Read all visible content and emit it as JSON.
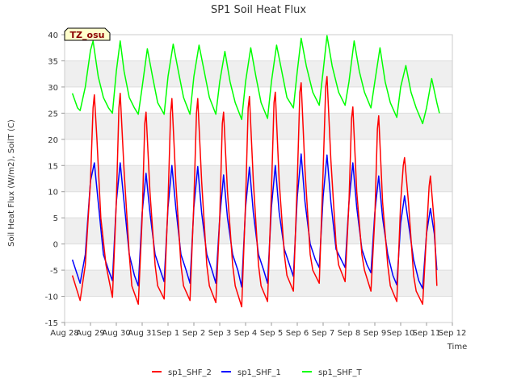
{
  "chart_data": {
    "type": "line",
    "title": "SP1 Soil Heat Flux",
    "xlabel": "Time",
    "ylabel": "Soil Heat Flux (W/m2), SoilT (C)",
    "badge": "TZ_osu",
    "x_ticks": [
      "Aug 28",
      "Aug 29",
      "Aug 30",
      "Aug 31",
      "Sep 1",
      "Sep 2",
      "Sep 3",
      "Sep 4",
      "Sep 5",
      "Sep 6",
      "Sep 7",
      "Sep 8",
      "Sep 9",
      "Sep 10",
      "Sep 11",
      "Sep 12"
    ],
    "xlim_days": [
      0,
      15
    ],
    "ylim": [
      -15,
      40
    ],
    "y_ticks": [
      -15,
      -10,
      -5,
      0,
      5,
      10,
      15,
      20,
      25,
      30,
      35,
      40
    ],
    "grid": "horizontal bands",
    "legend_position": "bottom",
    "series": [
      {
        "name": "sp1_SHF_2",
        "color": "#ff0000",
        "points": [
          [
            0.3,
            -6
          ],
          [
            0.6,
            -10.8
          ],
          [
            0.8,
            -4
          ],
          [
            1.0,
            12
          ],
          [
            1.1,
            26
          ],
          [
            1.15,
            28.5
          ],
          [
            1.25,
            20
          ],
          [
            1.4,
            5
          ],
          [
            1.6,
            -4
          ],
          [
            1.85,
            -10.2
          ],
          [
            2.0,
            8
          ],
          [
            2.1,
            26
          ],
          [
            2.15,
            28.8
          ],
          [
            2.3,
            14
          ],
          [
            2.5,
            -2
          ],
          [
            2.6,
            -8
          ],
          [
            2.85,
            -11.5
          ],
          [
            3.0,
            5
          ],
          [
            3.1,
            23
          ],
          [
            3.15,
            25.2
          ],
          [
            3.3,
            10
          ],
          [
            3.5,
            -4
          ],
          [
            3.6,
            -8
          ],
          [
            3.85,
            -10.5
          ],
          [
            4.0,
            8
          ],
          [
            4.1,
            25
          ],
          [
            4.15,
            27.8
          ],
          [
            4.3,
            12
          ],
          [
            4.5,
            -4
          ],
          [
            4.6,
            -8
          ],
          [
            4.85,
            -10.8
          ],
          [
            5.0,
            8
          ],
          [
            5.1,
            25
          ],
          [
            5.15,
            27.8
          ],
          [
            5.3,
            12
          ],
          [
            5.5,
            -4
          ],
          [
            5.6,
            -8
          ],
          [
            5.85,
            -11.2
          ],
          [
            6.0,
            5
          ],
          [
            6.1,
            23
          ],
          [
            6.15,
            25.2
          ],
          [
            6.3,
            10
          ],
          [
            6.5,
            -4
          ],
          [
            6.6,
            -8
          ],
          [
            6.85,
            -12
          ],
          [
            7.0,
            8
          ],
          [
            7.1,
            26
          ],
          [
            7.15,
            28.2
          ],
          [
            7.3,
            12
          ],
          [
            7.5,
            -4
          ],
          [
            7.6,
            -8
          ],
          [
            7.85,
            -11
          ],
          [
            8.0,
            10
          ],
          [
            8.1,
            27
          ],
          [
            8.15,
            29
          ],
          [
            8.3,
            12
          ],
          [
            8.5,
            -2
          ],
          [
            8.6,
            -6
          ],
          [
            8.85,
            -9
          ],
          [
            9.0,
            12
          ],
          [
            9.1,
            29
          ],
          [
            9.15,
            30.8
          ],
          [
            9.3,
            14
          ],
          [
            9.5,
            -2
          ],
          [
            9.6,
            -5
          ],
          [
            9.85,
            -7.5
          ],
          [
            10.0,
            14
          ],
          [
            10.1,
            30
          ],
          [
            10.15,
            32
          ],
          [
            10.3,
            16
          ],
          [
            10.5,
            0
          ],
          [
            10.6,
            -4
          ],
          [
            10.85,
            -7.2
          ],
          [
            11.0,
            8
          ],
          [
            11.1,
            24
          ],
          [
            11.15,
            26.2
          ],
          [
            11.3,
            10
          ],
          [
            11.5,
            -2
          ],
          [
            11.6,
            -5
          ],
          [
            11.85,
            -9
          ],
          [
            12.0,
            5
          ],
          [
            12.1,
            22
          ],
          [
            12.15,
            24.5
          ],
          [
            12.3,
            8
          ],
          [
            12.5,
            -4
          ],
          [
            12.6,
            -8
          ],
          [
            12.85,
            -11
          ],
          [
            13.0,
            8
          ],
          [
            13.1,
            15
          ],
          [
            13.15,
            16.5
          ],
          [
            13.3,
            8
          ],
          [
            13.5,
            -6
          ],
          [
            13.6,
            -9
          ],
          [
            13.85,
            -11.5
          ],
          [
            14.0,
            2
          ],
          [
            14.1,
            11
          ],
          [
            14.15,
            13
          ],
          [
            14.3,
            4
          ],
          [
            14.4,
            -8
          ]
        ]
      },
      {
        "name": "sp1_SHF_1",
        "color": "#0000ff",
        "points": [
          [
            0.3,
            -3
          ],
          [
            0.6,
            -7.5
          ],
          [
            0.8,
            -2
          ],
          [
            1.0,
            12
          ],
          [
            1.15,
            15.5
          ],
          [
            1.3,
            8
          ],
          [
            1.5,
            -2
          ],
          [
            1.7,
            -5
          ],
          [
            1.85,
            -7
          ],
          [
            2.0,
            8
          ],
          [
            2.15,
            15.5
          ],
          [
            2.3,
            8
          ],
          [
            2.5,
            -2
          ],
          [
            2.7,
            -6
          ],
          [
            2.85,
            -8
          ],
          [
            3.0,
            6
          ],
          [
            3.15,
            13.5
          ],
          [
            3.3,
            6
          ],
          [
            3.5,
            -2
          ],
          [
            3.7,
            -5
          ],
          [
            3.85,
            -7.2
          ],
          [
            4.0,
            7
          ],
          [
            4.15,
            15
          ],
          [
            4.3,
            7
          ],
          [
            4.5,
            -2
          ],
          [
            4.7,
            -5
          ],
          [
            4.85,
            -7.5
          ],
          [
            5.0,
            7
          ],
          [
            5.15,
            14.8
          ],
          [
            5.3,
            6
          ],
          [
            5.5,
            -2
          ],
          [
            5.7,
            -5
          ],
          [
            5.85,
            -7.5
          ],
          [
            6.0,
            5
          ],
          [
            6.15,
            13.2
          ],
          [
            6.3,
            5
          ],
          [
            6.5,
            -2
          ],
          [
            6.7,
            -5
          ],
          [
            6.85,
            -8.2
          ],
          [
            7.0,
            7
          ],
          [
            7.15,
            14.7
          ],
          [
            7.3,
            6
          ],
          [
            7.5,
            -2
          ],
          [
            7.7,
            -5
          ],
          [
            7.85,
            -7.5
          ],
          [
            8.0,
            7
          ],
          [
            8.15,
            15
          ],
          [
            8.3,
            6
          ],
          [
            8.5,
            -1
          ],
          [
            8.7,
            -4
          ],
          [
            8.85,
            -6.2
          ],
          [
            9.0,
            9
          ],
          [
            9.15,
            17.2
          ],
          [
            9.3,
            8
          ],
          [
            9.5,
            0
          ],
          [
            9.7,
            -3
          ],
          [
            9.85,
            -4.5
          ],
          [
            10.0,
            9
          ],
          [
            10.15,
            17
          ],
          [
            10.3,
            8
          ],
          [
            10.5,
            -1
          ],
          [
            10.7,
            -3
          ],
          [
            10.85,
            -4.5
          ],
          [
            11.0,
            8
          ],
          [
            11.15,
            15.5
          ],
          [
            11.3,
            7
          ],
          [
            11.5,
            -1
          ],
          [
            11.7,
            -4
          ],
          [
            11.85,
            -5.5
          ],
          [
            12.0,
            6
          ],
          [
            12.15,
            13
          ],
          [
            12.3,
            5
          ],
          [
            12.5,
            -2
          ],
          [
            12.7,
            -6
          ],
          [
            12.85,
            -7.8
          ],
          [
            13.0,
            4
          ],
          [
            13.15,
            9.2
          ],
          [
            13.3,
            4
          ],
          [
            13.5,
            -3
          ],
          [
            13.7,
            -7
          ],
          [
            13.85,
            -8.5
          ],
          [
            14.0,
            2
          ],
          [
            14.15,
            6.8
          ],
          [
            14.3,
            2
          ],
          [
            14.4,
            -5
          ]
        ]
      },
      {
        "name": "sp1_SHF_T",
        "color": "#00ff00",
        "points": [
          [
            0.3,
            28.8
          ],
          [
            0.5,
            26
          ],
          [
            0.6,
            25.5
          ],
          [
            0.8,
            30
          ],
          [
            1.0,
            37
          ],
          [
            1.1,
            38.8
          ],
          [
            1.3,
            32
          ],
          [
            1.5,
            28
          ],
          [
            1.7,
            26
          ],
          [
            1.85,
            25
          ],
          [
            2.0,
            33
          ],
          [
            2.15,
            38.8
          ],
          [
            2.3,
            33
          ],
          [
            2.5,
            28
          ],
          [
            2.7,
            26
          ],
          [
            2.85,
            24.8
          ],
          [
            3.0,
            30
          ],
          [
            3.2,
            37.3
          ],
          [
            3.4,
            32
          ],
          [
            3.6,
            27
          ],
          [
            3.85,
            24.8
          ],
          [
            4.0,
            32
          ],
          [
            4.2,
            38.2
          ],
          [
            4.4,
            33
          ],
          [
            4.6,
            28
          ],
          [
            4.85,
            24.8
          ],
          [
            5.0,
            32
          ],
          [
            5.2,
            38
          ],
          [
            5.4,
            33
          ],
          [
            5.6,
            28
          ],
          [
            5.85,
            24.8
          ],
          [
            6.0,
            31
          ],
          [
            6.2,
            36.8
          ],
          [
            6.4,
            31
          ],
          [
            6.6,
            27
          ],
          [
            6.85,
            23.8
          ],
          [
            7.0,
            31
          ],
          [
            7.2,
            37.5
          ],
          [
            7.4,
            32
          ],
          [
            7.6,
            27
          ],
          [
            7.85,
            24
          ],
          [
            8.0,
            31
          ],
          [
            8.2,
            38
          ],
          [
            8.4,
            33
          ],
          [
            8.6,
            28
          ],
          [
            8.85,
            26
          ],
          [
            9.0,
            33
          ],
          [
            9.15,
            39.3
          ],
          [
            9.35,
            34
          ],
          [
            9.6,
            29
          ],
          [
            9.85,
            26.5
          ],
          [
            10.0,
            33
          ],
          [
            10.15,
            39.8
          ],
          [
            10.35,
            34
          ],
          [
            10.6,
            29
          ],
          [
            10.85,
            26.5
          ],
          [
            11.0,
            31
          ],
          [
            11.2,
            38.8
          ],
          [
            11.4,
            33
          ],
          [
            11.6,
            29
          ],
          [
            11.85,
            26
          ],
          [
            12.0,
            31
          ],
          [
            12.2,
            37.5
          ],
          [
            12.4,
            31
          ],
          [
            12.6,
            27
          ],
          [
            12.85,
            24.2
          ],
          [
            13.0,
            30
          ],
          [
            13.2,
            34.1
          ],
          [
            13.4,
            29
          ],
          [
            13.6,
            26
          ],
          [
            13.85,
            23
          ],
          [
            14.0,
            26
          ],
          [
            14.2,
            31.6
          ],
          [
            14.4,
            27
          ],
          [
            14.5,
            25
          ]
        ]
      }
    ]
  }
}
